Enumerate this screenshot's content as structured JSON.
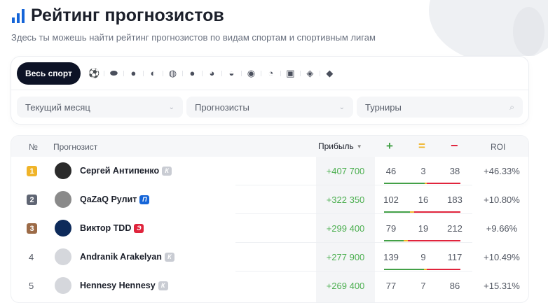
{
  "header": {
    "title": "Рейтинг прогнозистов",
    "subtitle": "Здесь ты можешь найти рейтинг прогнозистов по видам спортам и спортивным лигам"
  },
  "sports": {
    "all_label": "Весь спорт",
    "icons": [
      "soccer-icon",
      "hockey-icon",
      "tennis-icon",
      "basketball-icon",
      "volleyball-icon",
      "table-tennis-icon",
      "handball-icon",
      "esports-icon",
      "mma-icon",
      "cricket-icon",
      "dota-icon",
      "american-football-icon",
      "baseball-icon"
    ]
  },
  "filters": [
    {
      "value": "Текущий месяц"
    },
    {
      "value": "Прогнозисты"
    },
    {
      "placeholder": "Турниры"
    }
  ],
  "table": {
    "headers": {
      "rank": "№",
      "name": "Прогнозист",
      "profit": "Прибыль",
      "win": "+",
      "draw": "=",
      "loss": "−",
      "roi": "ROI"
    },
    "colors": {
      "win": "#43a047",
      "draw": "#f0b429",
      "loss": "#e0243c",
      "profit": "#4caf50"
    },
    "rows": [
      {
        "rank": "1",
        "name": "Сергей Антипенко",
        "badge": "К",
        "badge_color": "#c9ccd3",
        "rank_color": "#f0b429",
        "profit": "+407 700",
        "win": "46",
        "draw": "3",
        "loss": "38",
        "roi": "+46.33%"
      },
      {
        "rank": "2",
        "name": "QaZaQ Рулит",
        "badge": "П",
        "badge_color": "#1565d8",
        "rank_color": "#5f6573",
        "profit": "+322 350",
        "win": "102",
        "draw": "16",
        "loss": "183",
        "roi": "+10.80%"
      },
      {
        "rank": "3",
        "name": "Виктор TDD",
        "badge": "Э",
        "badge_color": "#e0243c",
        "rank_color": "#9c6b47",
        "profit": "+299 400",
        "win": "79",
        "draw": "19",
        "loss": "212",
        "roi": "+9.66%"
      },
      {
        "rank": "4",
        "name": "Andranik Arakelyan",
        "badge": "К",
        "badge_color": "#c9ccd3",
        "rank_color": "",
        "profit": "+277 900",
        "win": "139",
        "draw": "9",
        "loss": "117",
        "roi": "+10.49%"
      },
      {
        "rank": "5",
        "name": "Hennesy Hennesy",
        "badge": "К",
        "badge_color": "#c9ccd3",
        "rank_color": "",
        "profit": "+269 400",
        "win": "77",
        "draw": "7",
        "loss": "86",
        "roi": "+15.31%"
      }
    ]
  }
}
